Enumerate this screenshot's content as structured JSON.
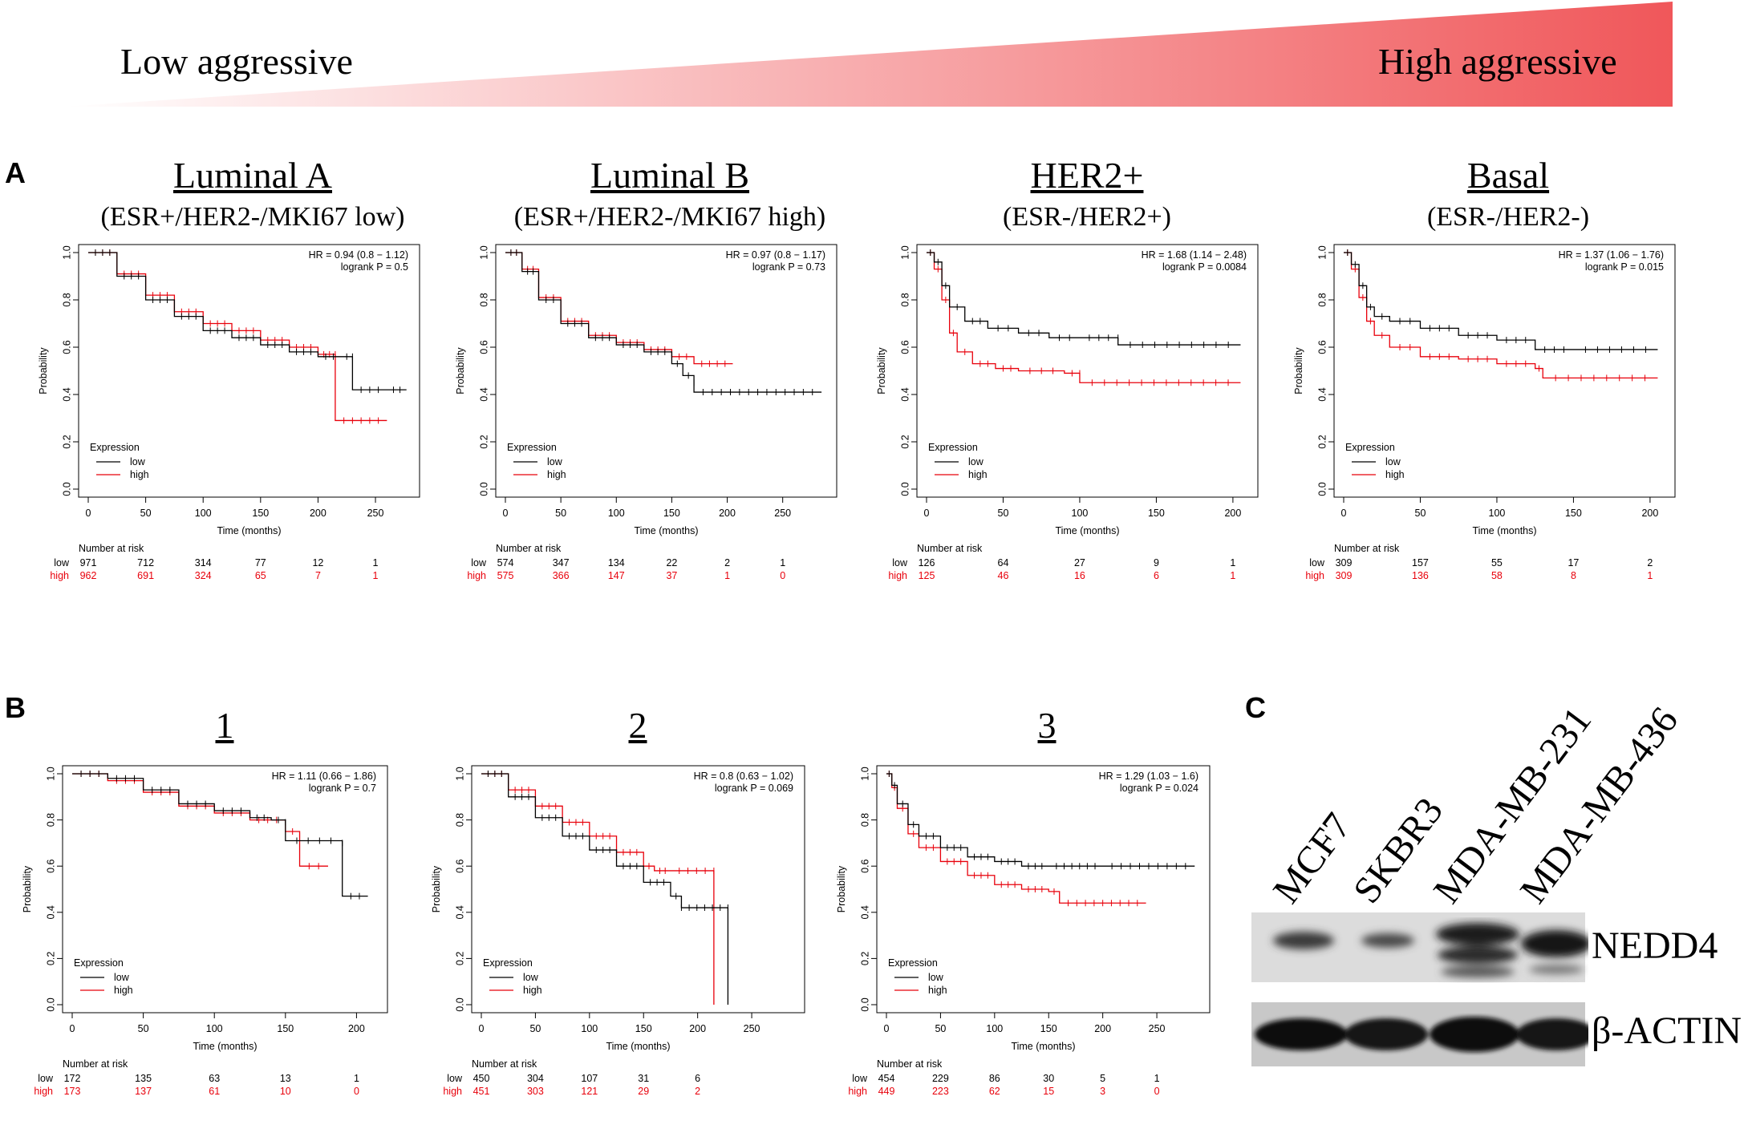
{
  "banner": {
    "left_label": "Low aggressive",
    "right_label": "High aggressive",
    "color": "#f0575a"
  },
  "colors": {
    "low": "#000000",
    "high": "#e8000b"
  },
  "panel_a": {
    "letter": "A",
    "subtypes": [
      {
        "title": "Luminal A",
        "subtitle": "(ESR+/HER2-/MKI67 low)"
      },
      {
        "title": "Luminal B",
        "subtitle": "(ESR+/HER2-/MKI67 high)"
      },
      {
        "title": "HER2+",
        "subtitle": "(ESR-/HER2+)"
      },
      {
        "title": "Basal",
        "subtitle": "(ESR-/HER2-)"
      }
    ]
  },
  "panel_b": {
    "letter": "B",
    "titles": [
      "1",
      "2",
      "3"
    ]
  },
  "panel_c": {
    "letter": "C",
    "lanes": [
      "MCF7",
      "SKBR3",
      "MDA-MB-231",
      "MDA-MB-436"
    ],
    "bands": [
      "NEDD4",
      "β-ACTIN"
    ]
  },
  "chart_data": [
    {
      "type": "line",
      "title": "Luminal A",
      "xlabel": "Time (months)",
      "ylabel": "Probability",
      "xticks": [
        0,
        50,
        100,
        150,
        200,
        250
      ],
      "yticks": [
        "0.0",
        "0.2",
        "0.4",
        "0.6",
        "0.8",
        "1.0"
      ],
      "xlim": [
        0,
        280
      ],
      "ylim": [
        0,
        1
      ],
      "hr": "HR = 0.94 (0.8 − 1.12)",
      "logrank": "logrank P = 0.5",
      "legend_title": "Expression",
      "legend": [
        "low",
        "high"
      ],
      "risk_title": "Number at risk",
      "risk": {
        "low": [
          "971",
          "712",
          "314",
          "77",
          "12",
          "1"
        ],
        "high": [
          "962",
          "691",
          "324",
          "65",
          "7",
          "1"
        ]
      },
      "series": [
        {
          "name": "low",
          "x": [
            0,
            25,
            50,
            75,
            100,
            125,
            150,
            175,
            200,
            220,
            230,
            230,
            260,
            277
          ],
          "y": [
            1,
            0.9,
            0.8,
            0.73,
            0.67,
            0.64,
            0.61,
            0.58,
            0.56,
            0.56,
            0.56,
            0.42,
            0.42,
            0.42
          ]
        },
        {
          "name": "high",
          "x": [
            0,
            25,
            50,
            75,
            100,
            125,
            150,
            175,
            200,
            215,
            215,
            260
          ],
          "y": [
            1,
            0.91,
            0.82,
            0.75,
            0.7,
            0.67,
            0.63,
            0.6,
            0.57,
            0.57,
            0.29,
            0.29
          ]
        }
      ]
    },
    {
      "type": "line",
      "title": "Luminal B",
      "xlabel": "Time (months)",
      "ylabel": "Probability",
      "xticks": [
        0,
        50,
        100,
        150,
        200,
        250
      ],
      "yticks": [
        "0.0",
        "0.2",
        "0.4",
        "0.6",
        "0.8",
        "1.0"
      ],
      "xlim": [
        0,
        290
      ],
      "ylim": [
        0,
        1
      ],
      "hr": "HR = 0.97 (0.8 − 1.17)",
      "logrank": "logrank P = 0.73",
      "legend_title": "Expression",
      "legend": [
        "low",
        "high"
      ],
      "risk_title": "Number at risk",
      "risk": {
        "low": [
          "574",
          "347",
          "134",
          "22",
          "2",
          "1"
        ],
        "high": [
          "575",
          "366",
          "147",
          "37",
          "1",
          "0"
        ]
      },
      "series": [
        {
          "name": "low",
          "x": [
            0,
            15,
            30,
            50,
            75,
            100,
            125,
            150,
            160,
            170,
            170,
            285
          ],
          "y": [
            1,
            0.92,
            0.8,
            0.7,
            0.64,
            0.61,
            0.58,
            0.53,
            0.48,
            0.45,
            0.41,
            0.41
          ]
        },
        {
          "name": "high",
          "x": [
            0,
            15,
            30,
            50,
            75,
            100,
            125,
            150,
            170,
            205
          ],
          "y": [
            1,
            0.93,
            0.81,
            0.71,
            0.65,
            0.62,
            0.59,
            0.56,
            0.53,
            0.53
          ]
        }
      ]
    },
    {
      "type": "line",
      "title": "HER2+",
      "xlabel": "Time (months)",
      "ylabel": "Probability",
      "xticks": [
        0,
        50,
        100,
        150,
        200
      ],
      "yticks": [
        "0.0",
        "0.2",
        "0.4",
        "0.6",
        "0.8",
        "1.0"
      ],
      "xlim": [
        0,
        210
      ],
      "ylim": [
        0,
        1
      ],
      "hr": "HR = 1.68 (1.14 − 2.48)",
      "logrank": "logrank P = 0.0084",
      "legend_title": "Expression",
      "legend": [
        "low",
        "high"
      ],
      "risk_title": "Number at risk",
      "risk": {
        "low": [
          "126",
          "64",
          "27",
          "9",
          "1"
        ],
        "high": [
          "125",
          "46",
          "16",
          "6",
          "1"
        ]
      },
      "series": [
        {
          "name": "low",
          "x": [
            0,
            5,
            10,
            15,
            25,
            40,
            60,
            80,
            100,
            125,
            125,
            205
          ],
          "y": [
            1,
            0.96,
            0.86,
            0.77,
            0.71,
            0.68,
            0.66,
            0.64,
            0.64,
            0.64,
            0.61,
            0.61
          ]
        },
        {
          "name": "high",
          "x": [
            0,
            5,
            10,
            15,
            20,
            30,
            45,
            60,
            90,
            100,
            100,
            205
          ],
          "y": [
            1,
            0.93,
            0.8,
            0.66,
            0.58,
            0.53,
            0.51,
            0.5,
            0.49,
            0.49,
            0.45,
            0.45
          ]
        }
      ]
    },
    {
      "type": "line",
      "title": "Basal",
      "xlabel": "Time (months)",
      "ylabel": "Probability",
      "xticks": [
        0,
        50,
        100,
        150,
        200
      ],
      "yticks": [
        "0.0",
        "0.2",
        "0.4",
        "0.6",
        "0.8",
        "1.0"
      ],
      "xlim": [
        0,
        210
      ],
      "ylim": [
        0,
        1
      ],
      "hr": "HR = 1.37 (1.06 − 1.76)",
      "logrank": "logrank P = 0.015",
      "legend_title": "Expression",
      "legend": [
        "low",
        "high"
      ],
      "risk_title": "Number at risk",
      "risk": {
        "low": [
          "309",
          "157",
          "55",
          "17",
          "2"
        ],
        "high": [
          "309",
          "136",
          "58",
          "8",
          "1"
        ]
      },
      "series": [
        {
          "name": "low",
          "x": [
            0,
            5,
            10,
            15,
            20,
            30,
            50,
            75,
            100,
            125,
            150,
            205
          ],
          "y": [
            1,
            0.95,
            0.86,
            0.77,
            0.73,
            0.71,
            0.68,
            0.65,
            0.63,
            0.59,
            0.59,
            0.59
          ]
        },
        {
          "name": "high",
          "x": [
            0,
            5,
            10,
            15,
            20,
            30,
            50,
            75,
            100,
            125,
            130,
            205
          ],
          "y": [
            1,
            0.93,
            0.81,
            0.71,
            0.65,
            0.6,
            0.56,
            0.55,
            0.53,
            0.51,
            0.47,
            0.47
          ]
        }
      ]
    },
    {
      "type": "line",
      "title": "1",
      "xlabel": "Time (months)",
      "ylabel": "Probability",
      "xticks": [
        0,
        50,
        100,
        150,
        200
      ],
      "yticks": [
        "0.0",
        "0.2",
        "0.4",
        "0.6",
        "0.8",
        "1.0"
      ],
      "xlim": [
        0,
        215
      ],
      "ylim": [
        0,
        1
      ],
      "hr": "HR = 1.11 (0.66 − 1.86)",
      "logrank": "logrank P = 0.7",
      "legend_title": "Expression",
      "legend": [
        "low",
        "high"
      ],
      "risk_title": "Number at risk",
      "risk": {
        "low": [
          "172",
          "135",
          "63",
          "13",
          "1"
        ],
        "high": [
          "173",
          "137",
          "61",
          "10",
          "0"
        ]
      },
      "series": [
        {
          "name": "low",
          "x": [
            0,
            25,
            50,
            75,
            100,
            125,
            140,
            150,
            150,
            190,
            190,
            208
          ],
          "y": [
            1,
            0.98,
            0.93,
            0.87,
            0.84,
            0.81,
            0.8,
            0.79,
            0.71,
            0.7,
            0.47,
            0.47
          ]
        },
        {
          "name": "high",
          "x": [
            0,
            25,
            50,
            75,
            100,
            125,
            150,
            160,
            160,
            180
          ],
          "y": [
            1,
            0.97,
            0.92,
            0.86,
            0.83,
            0.8,
            0.75,
            0.73,
            0.6,
            0.6
          ]
        }
      ]
    },
    {
      "type": "line",
      "title": "2",
      "xlabel": "Time (months)",
      "ylabel": "Probability",
      "xticks": [
        0,
        50,
        100,
        150,
        200,
        250
      ],
      "yticks": [
        "0.0",
        "0.2",
        "0.4",
        "0.6",
        "0.8",
        "1.0"
      ],
      "xlim": [
        0,
        290
      ],
      "ylim": [
        0,
        1
      ],
      "hr": "HR = 0.8 (0.63 − 1.02)",
      "logrank": "logrank P = 0.069",
      "legend_title": "Expression",
      "legend": [
        "low",
        "high"
      ],
      "risk_title": "Number at risk",
      "risk": {
        "low": [
          "450",
          "304",
          "107",
          "31",
          "6"
        ],
        "high": [
          "451",
          "303",
          "121",
          "29",
          "2"
        ]
      },
      "series": [
        {
          "name": "low",
          "x": [
            0,
            25,
            50,
            75,
            100,
            125,
            150,
            175,
            185,
            185,
            228,
            228
          ],
          "y": [
            1,
            0.9,
            0.81,
            0.73,
            0.67,
            0.6,
            0.53,
            0.47,
            0.42,
            0.42,
            0.42,
            0
          ]
        },
        {
          "name": "high",
          "x": [
            0,
            25,
            50,
            75,
            100,
            125,
            150,
            160,
            175,
            215,
            215
          ],
          "y": [
            1,
            0.93,
            0.86,
            0.79,
            0.73,
            0.66,
            0.6,
            0.58,
            0.58,
            0.58,
            0
          ]
        }
      ]
    },
    {
      "type": "line",
      "title": "3",
      "xlabel": "Time (months)",
      "ylabel": "Probability",
      "xticks": [
        0,
        50,
        100,
        150,
        200,
        250
      ],
      "yticks": [
        "0.0",
        "0.2",
        "0.4",
        "0.6",
        "0.8",
        "1.0"
      ],
      "xlim": [
        0,
        290
      ],
      "ylim": [
        0,
        1
      ],
      "hr": "HR = 1.29 (1.03 − 1.6)",
      "logrank": "logrank P = 0.024",
      "legend_title": "Expression",
      "legend": [
        "low",
        "high"
      ],
      "risk_title": "Number at risk",
      "risk": {
        "low": [
          "454",
          "229",
          "86",
          "30",
          "5",
          "1"
        ],
        "high": [
          "449",
          "223",
          "62",
          "15",
          "3",
          "0"
        ]
      },
      "series": [
        {
          "name": "low",
          "x": [
            0,
            5,
            10,
            20,
            30,
            50,
            75,
            100,
            125,
            150,
            200,
            285
          ],
          "y": [
            1,
            0.95,
            0.87,
            0.78,
            0.73,
            0.68,
            0.64,
            0.62,
            0.6,
            0.6,
            0.6,
            0.6
          ]
        },
        {
          "name": "high",
          "x": [
            0,
            5,
            10,
            20,
            30,
            50,
            75,
            100,
            125,
            150,
            160,
            240
          ],
          "y": [
            1,
            0.94,
            0.85,
            0.74,
            0.68,
            0.62,
            0.56,
            0.52,
            0.5,
            0.49,
            0.44,
            0.44
          ]
        }
      ]
    }
  ]
}
